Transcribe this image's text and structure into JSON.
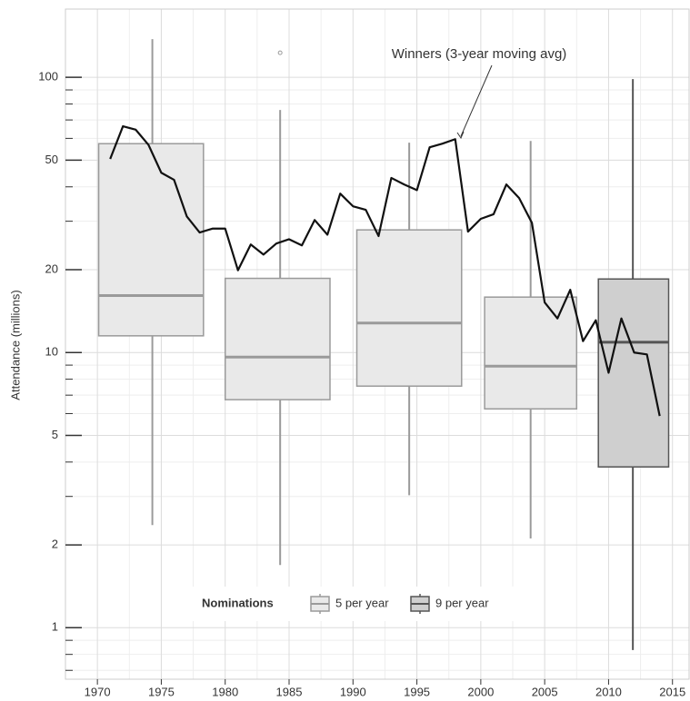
{
  "chart_data": {
    "type": "box",
    "y_label": "Attendance (millions)",
    "yscale": "log",
    "xlim": [
      1967.5,
      2016.3
    ],
    "ylim": [
      0.65,
      177
    ],
    "xticks": [
      1970,
      1975,
      1980,
      1985,
      1990,
      1995,
      2000,
      2005,
      2010,
      2015
    ],
    "xticks_minor": [
      1967.5,
      1972.5,
      1977.5,
      1982.5,
      1987.5,
      1992.5,
      1997.5,
      2002.5,
      2007.5,
      2012.5
    ],
    "yticks": [
      1,
      2,
      5,
      10,
      20,
      50,
      100
    ],
    "yticks_minor": [
      0.7,
      0.8,
      0.9,
      3,
      4,
      6,
      7,
      8,
      9,
      30,
      40,
      60,
      70,
      80,
      90
    ],
    "grid": true,
    "legend_title": "Nominations",
    "groups": [
      {
        "name": "5 per year",
        "fill": "#e9e9e9",
        "stroke": "#9a9a9a",
        "boxes": [
          {
            "x0": 1970.1,
            "x1": 1978.3,
            "x": 1974.3,
            "whisker_low": 2.36,
            "q1": 11.5,
            "median": 16.1,
            "q3": 57.4,
            "whisker_high": 137.6,
            "outliers": []
          },
          {
            "x0": 1980.0,
            "x1": 1988.2,
            "x": 1984.3,
            "whisker_low": 1.69,
            "q1": 6.74,
            "median": 9.63,
            "q3": 18.6,
            "whisker_high": 76.1,
            "outliers": [
              122.8
            ]
          },
          {
            "x0": 1990.3,
            "x1": 1998.5,
            "x": 1994.4,
            "whisker_low": 3.03,
            "q1": 7.55,
            "median": 12.8,
            "q3": 27.9,
            "whisker_high": 57.9,
            "outliers": []
          },
          {
            "x0": 2000.3,
            "x1": 2007.5,
            "x": 2003.9,
            "whisker_low": 2.11,
            "q1": 6.24,
            "median": 8.92,
            "q3": 15.9,
            "whisker_high": 58.7,
            "outliers": []
          }
        ]
      },
      {
        "name": "9 per year",
        "fill": "#cfcfcf",
        "stroke": "#555555",
        "boxes": [
          {
            "x0": 2009.2,
            "x1": 2014.7,
            "x": 2011.9,
            "whisker_low": 0.83,
            "q1": 3.84,
            "median": 10.9,
            "q3": 18.5,
            "whisker_high": 98.5,
            "outliers": []
          }
        ]
      }
    ],
    "line": {
      "name": "Winners (3-year moving avg)",
      "color": "#111111",
      "x": [
        1971,
        1972,
        1973,
        1974,
        1975,
        1976,
        1977,
        1978,
        1979,
        1980,
        1981,
        1982,
        1983,
        1984,
        1985,
        1986,
        1987,
        1988,
        1989,
        1990,
        1991,
        1992,
        1993,
        1994,
        1995,
        1996,
        1997,
        1998,
        1999,
        2000,
        2001,
        2002,
        2003,
        2004,
        2005,
        2006,
        2007,
        2008,
        2009,
        2010,
        2011,
        2012,
        2013,
        2014
      ],
      "values": [
        50.5,
        66.4,
        64.5,
        56.8,
        45,
        42.4,
        31.2,
        27.3,
        28.2,
        28.2,
        19.9,
        24.7,
        22.7,
        24.9,
        25.8,
        24.5,
        30.3,
        26.8,
        37.8,
        34,
        33,
        26.5,
        43.1,
        40.8,
        38.9,
        55.7,
        57.4,
        59.6,
        27.5,
        30.6,
        31.8,
        40.8,
        36.4,
        29.6,
        15.2,
        13.3,
        16.9,
        11,
        13.1,
        8.44,
        13.3,
        10,
        9.84,
        5.88
      ]
    }
  }
}
